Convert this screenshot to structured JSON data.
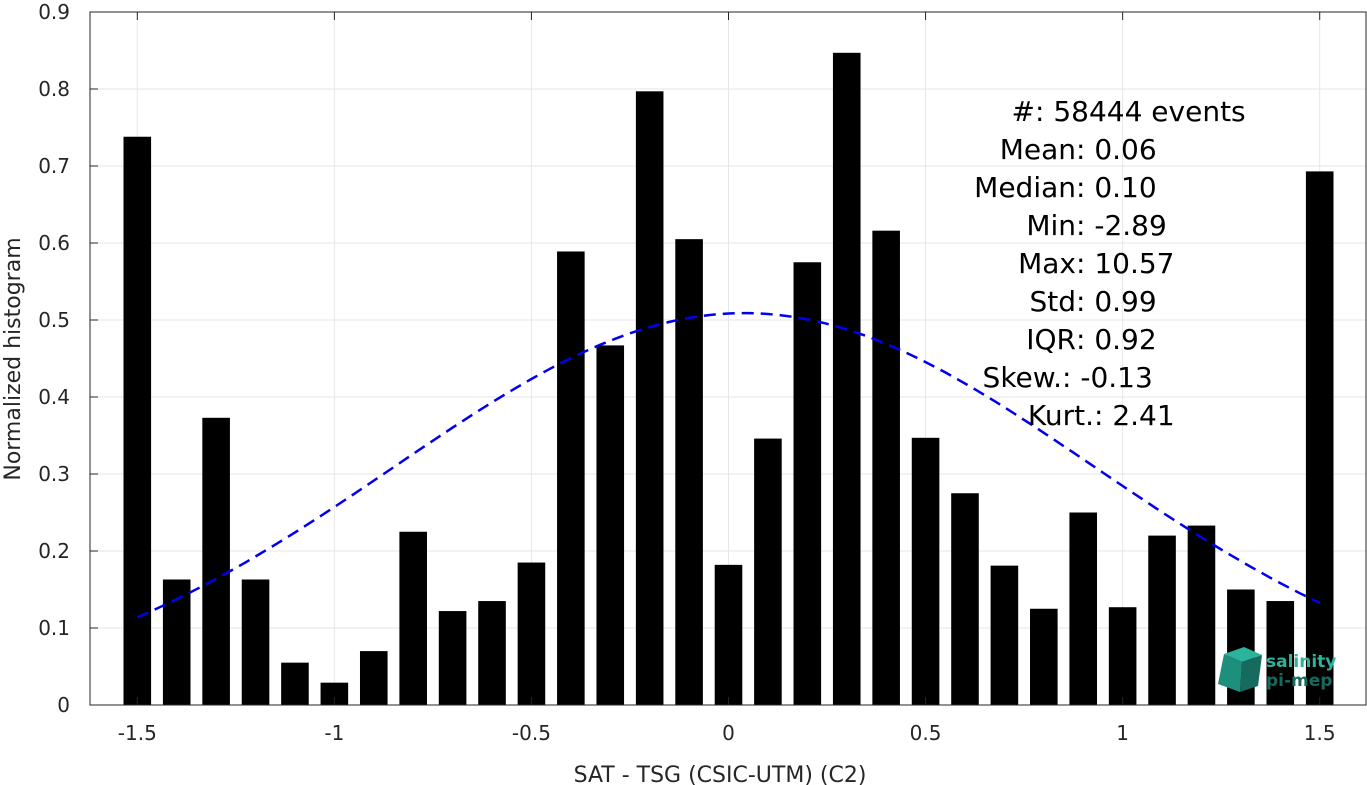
{
  "chart_data": {
    "type": "bar",
    "xlabel": "SAT - TSG (CSIC-UTM) (C2)",
    "ylabel": "Normalized histogram",
    "xlim": [
      -1.62,
      1.62
    ],
    "ylim": [
      0,
      0.9
    ],
    "grid": true,
    "x_ticks": [
      -1.5,
      -1,
      -0.5,
      0,
      0.5,
      1,
      1.5
    ],
    "x_tick_labels": [
      "-1.5",
      "-1",
      "-0.5",
      "0",
      "0.5",
      "1",
      "1.5"
    ],
    "y_ticks": [
      0,
      0.1,
      0.2,
      0.3,
      0.4,
      0.5,
      0.6,
      0.7,
      0.8,
      0.9
    ],
    "y_tick_labels": [
      "0",
      "0.1",
      "0.2",
      "0.3",
      "0.4",
      "0.5",
      "0.6",
      "0.7",
      "0.8",
      "0.9"
    ],
    "bar_width": 0.07,
    "bar_color": "#000000",
    "x": [
      -1.5,
      -1.4,
      -1.3,
      -1.2,
      -1.1,
      -1.0,
      -0.9,
      -0.8,
      -0.7,
      -0.6,
      -0.5,
      -0.4,
      -0.3,
      -0.2,
      -0.1,
      0.0,
      0.1,
      0.2,
      0.3,
      0.4,
      0.5,
      0.6,
      0.7,
      0.8,
      0.9,
      1.0,
      1.1,
      1.2,
      1.3,
      1.4,
      1.5
    ],
    "values": [
      0.738,
      0.163,
      0.373,
      0.163,
      0.055,
      0.029,
      0.07,
      0.225,
      0.122,
      0.135,
      0.185,
      0.589,
      0.467,
      0.797,
      0.605,
      0.182,
      0.346,
      0.575,
      0.847,
      0.616,
      0.347,
      0.275,
      0.181,
      0.125,
      0.25,
      0.127,
      0.22,
      0.233,
      0.15,
      0.135,
      0.693
    ],
    "fit_curve": {
      "type": "gaussian",
      "mean": 0.04,
      "amplitude": 0.509,
      "sigma": 0.89,
      "x_range": [
        -1.5,
        1.5
      ],
      "color": "#0000ee",
      "style": "dashed"
    },
    "stats_box": {
      "placement": "top-right",
      "lines": [
        {
          "label": "#  ",
          "value": ": 58444 events"
        },
        {
          "label": "Mean ",
          "value": ": 0.06"
        },
        {
          "label": "Median ",
          "value": ": 0.10"
        },
        {
          "label": "Min ",
          "value": ": -2.89"
        },
        {
          "label": "Max ",
          "value": ": 10.57"
        },
        {
          "label": "Std ",
          "value": ": 0.99"
        },
        {
          "label": "IQR ",
          "value": ": 0.92"
        },
        {
          "label": "Skew. ",
          "value": ": -0.13"
        },
        {
          "label": "Kurt. ",
          "value": ": 2.41"
        }
      ]
    }
  },
  "logo": {
    "line1": "salinity",
    "line2": "pi-mep",
    "color_top": "#2bb39b",
    "color_bottom": "#166a5e"
  }
}
